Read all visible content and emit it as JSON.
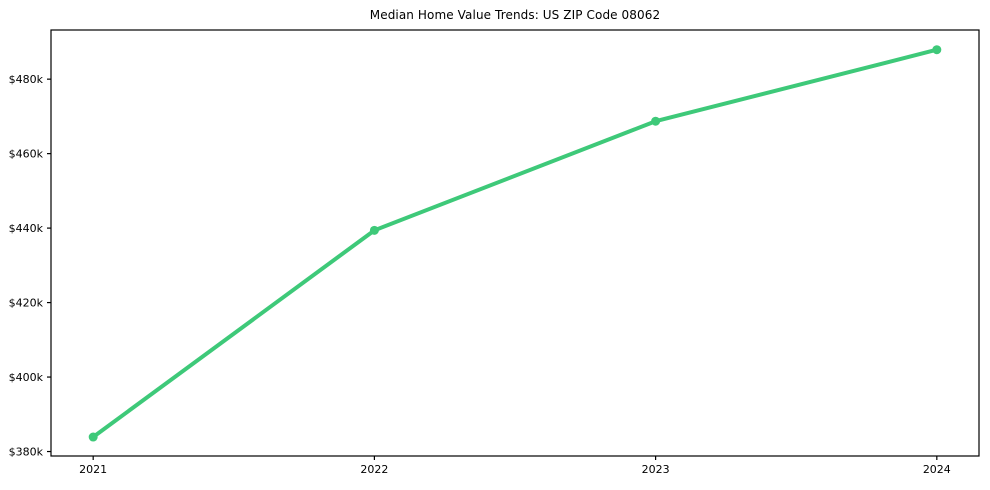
{
  "chart_data": {
    "type": "line",
    "title": "Median Home Value Trends: US ZIP Code 08062",
    "x": [
      2021,
      2022,
      2023,
      2024
    ],
    "values": [
      383.9,
      439.4,
      468.7,
      487.9
    ],
    "values_unit_hint": "y axis labeled in $ thousands (k)",
    "x_tick_labels": [
      "2021",
      "2022",
      "2023",
      "2024"
    ],
    "y_tick_values": [
      380,
      400,
      420,
      440,
      460,
      480
    ],
    "y_tick_labels": [
      "$380k",
      "$400k",
      "$420k",
      "$440k",
      "$460k",
      "$480k"
    ],
    "xlabel": "",
    "ylabel": "",
    "xlim": [
      2020.85,
      2024.15
    ],
    "ylim": [
      378.8,
      493.2
    ],
    "grid": false,
    "legend": "none",
    "line_color": "#3ec979",
    "marker": "circle",
    "line_width": 4,
    "marker_radius": 4.5,
    "axis_color": "#000000",
    "background_color": "#ffffff"
  }
}
